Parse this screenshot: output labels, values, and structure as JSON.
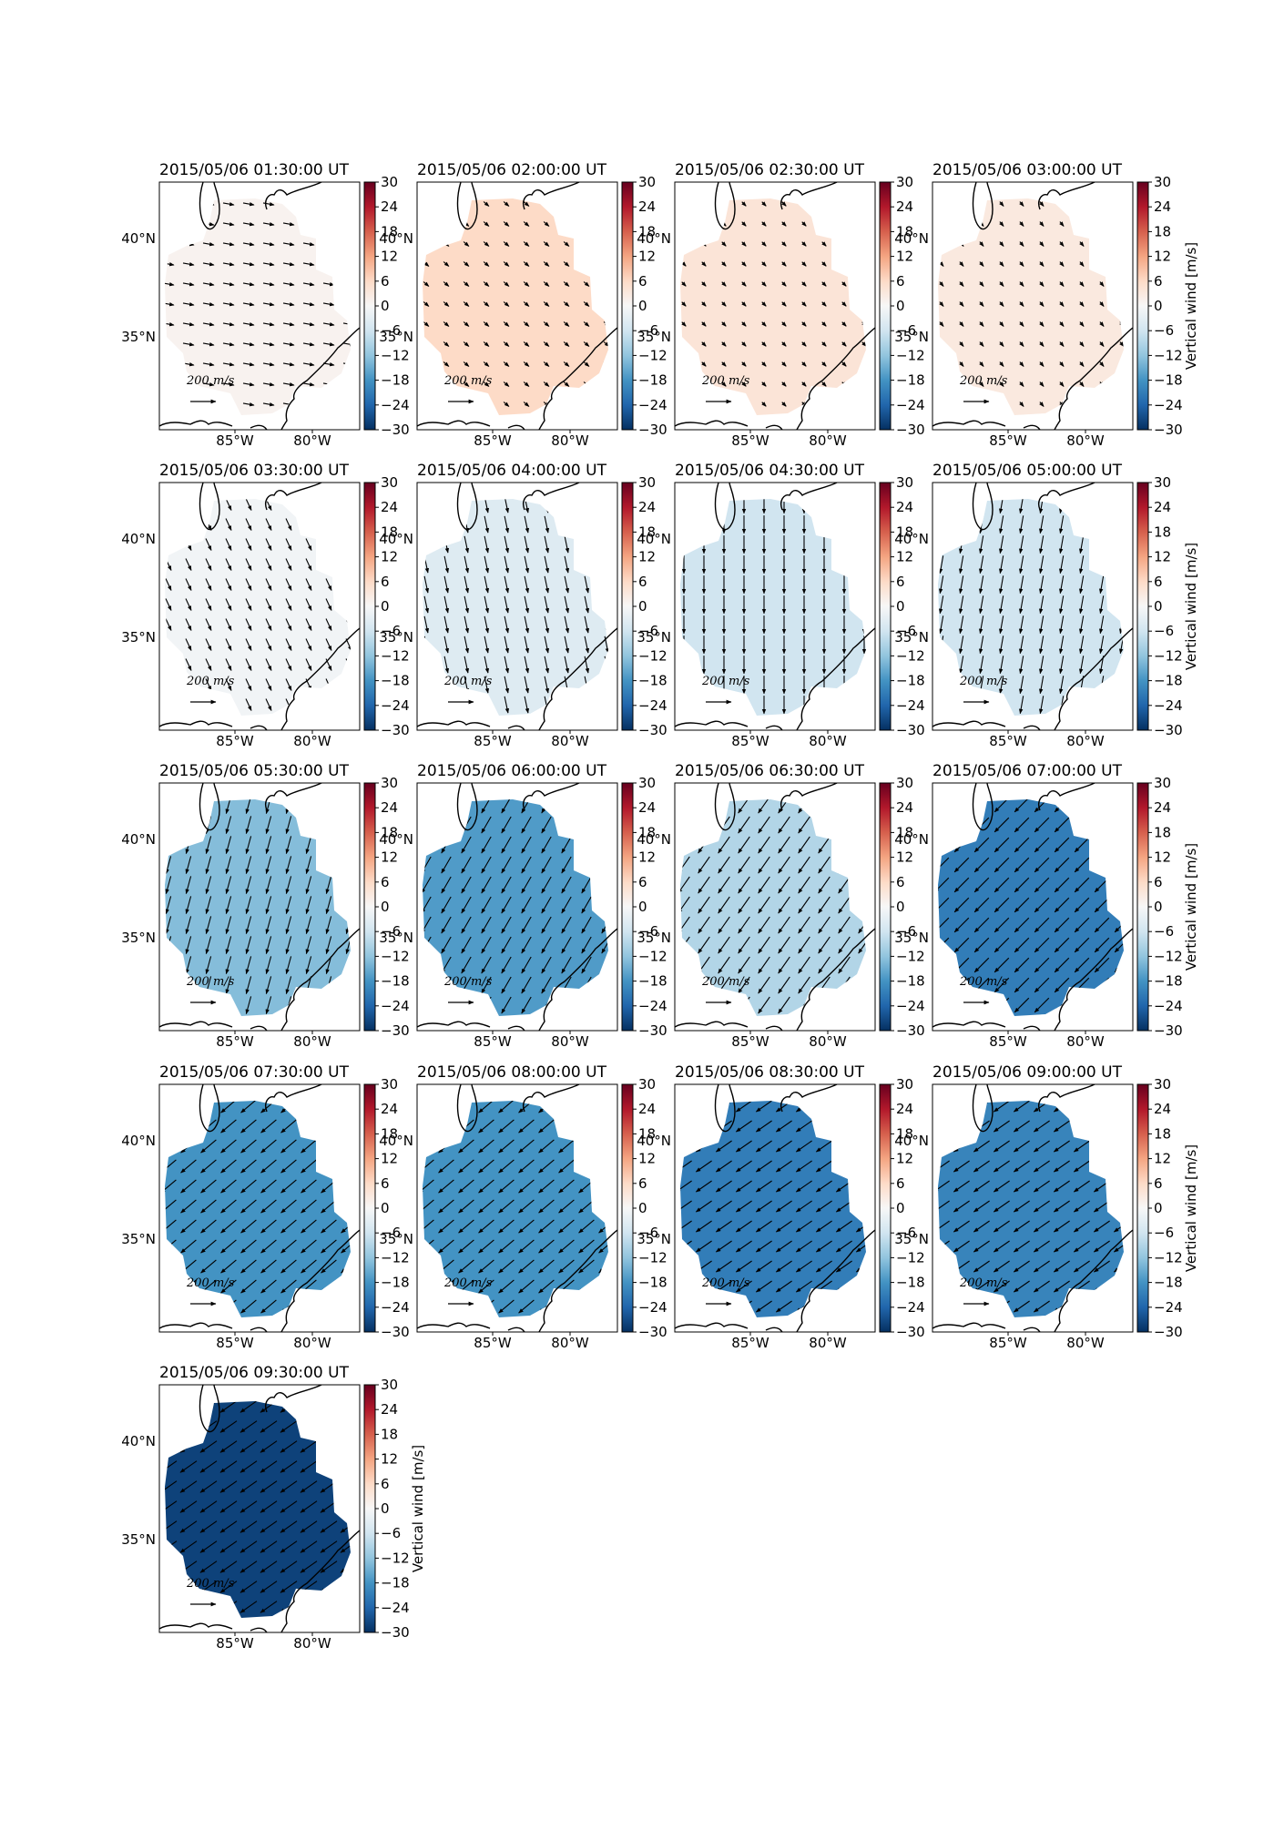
{
  "figure": {
    "colorbar_label": "Vertical wind [m/s]",
    "colorbar_ticks": [
      30,
      24,
      18,
      12,
      6,
      0,
      -6,
      -12,
      -18,
      -24,
      -30
    ],
    "colorbar_range": [
      -30,
      30
    ],
    "colormap": "RdBu_r",
    "lon_ticks": [
      "85°W",
      "80°W"
    ],
    "lat_ticks": [
      "40°N",
      "35°N"
    ],
    "quiver_key": {
      "value": "200",
      "unit_num": "m",
      "unit_den": "s"
    }
  },
  "chart_data": {
    "type": "heatmap",
    "panels": [
      {
        "title": "2015/05/06 01:30:00 UT",
        "vertical_wind": 1,
        "vector_angle_deg": -10,
        "vector_len": 0.55
      },
      {
        "title": "2015/05/06 02:00:00 UT",
        "vertical_wind": 6,
        "vector_angle_deg": -40,
        "vector_len": 0.35
      },
      {
        "title": "2015/05/06 02:30:00 UT",
        "vertical_wind": 4,
        "vector_angle_deg": -45,
        "vector_len": 0.3
      },
      {
        "title": "2015/05/06 03:00:00 UT",
        "vertical_wind": 3,
        "vector_angle_deg": -50,
        "vector_len": 0.3
      },
      {
        "title": "2015/05/06 03:30:00 UT",
        "vertical_wind": -1,
        "vector_angle_deg": -65,
        "vector_len": 0.65
      },
      {
        "title": "2015/05/06 04:00:00 UT",
        "vertical_wind": -4,
        "vector_angle_deg": -78,
        "vector_len": 0.85
      },
      {
        "title": "2015/05/06 04:30:00 UT",
        "vertical_wind": -6,
        "vector_angle_deg": -90,
        "vector_len": 0.9
      },
      {
        "title": "2015/05/06 05:00:00 UT",
        "vertical_wind": -6,
        "vector_angle_deg": -100,
        "vector_len": 0.9
      },
      {
        "title": "2015/05/06 05:30:00 UT",
        "vertical_wind": -13,
        "vector_angle_deg": -105,
        "vector_len": 0.9
      },
      {
        "title": "2015/05/06 06:00:00 UT",
        "vertical_wind": -17,
        "vector_angle_deg": -120,
        "vector_len": 0.95
      },
      {
        "title": "2015/05/06 06:30:00 UT",
        "vertical_wind": -9,
        "vector_angle_deg": -125,
        "vector_len": 1.0
      },
      {
        "title": "2015/05/06 07:00:00 UT",
        "vertical_wind": -21,
        "vector_angle_deg": -135,
        "vector_len": 1.0
      },
      {
        "title": "2015/05/06 07:30:00 UT",
        "vertical_wind": -18,
        "vector_angle_deg": -140,
        "vector_len": 1.0
      },
      {
        "title": "2015/05/06 08:00:00 UT",
        "vertical_wind": -18,
        "vector_angle_deg": -140,
        "vector_len": 1.0
      },
      {
        "title": "2015/05/06 08:30:00 UT",
        "vertical_wind": -21,
        "vector_angle_deg": -145,
        "vector_len": 0.95
      },
      {
        "title": "2015/05/06 09:00:00 UT",
        "vertical_wind": -20,
        "vector_angle_deg": -145,
        "vector_len": 0.95
      },
      {
        "title": "2015/05/06 09:30:00 UT",
        "vertical_wind": -28,
        "vector_angle_deg": -145,
        "vector_len": 1.0
      }
    ]
  }
}
